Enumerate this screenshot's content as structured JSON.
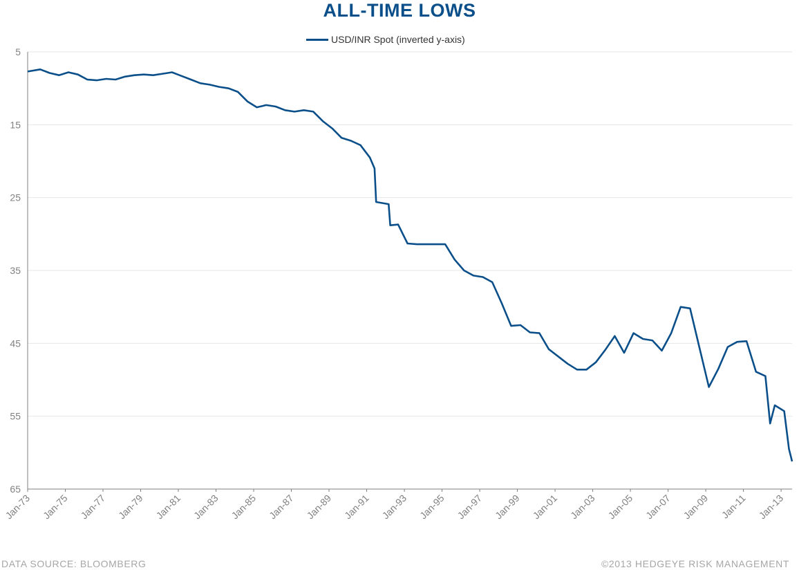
{
  "chart_data": {
    "type": "line",
    "title": "ALL-TIME LOWS",
    "xlabel": "",
    "ylabel": "",
    "y_inverted": true,
    "ylim": [
      5,
      65
    ],
    "yticks": [
      5,
      15,
      25,
      35,
      45,
      55,
      65
    ],
    "xticks": [
      "Jan-73",
      "Jan-75",
      "Jan-77",
      "Jan-79",
      "Jan-81",
      "Jan-83",
      "Jan-85",
      "Jan-87",
      "Jan-89",
      "Jan-91",
      "Jan-93",
      "Jan-95",
      "Jan-97",
      "Jan-99",
      "Jan-01",
      "Jan-03",
      "Jan-05",
      "Jan-07",
      "Jan-09",
      "Jan-11",
      "Jan-13"
    ],
    "grid": "horizontal",
    "legend_position": "top-center",
    "series": [
      {
        "name": "USD/INR Spot (inverted y-axis)",
        "color": "#0b4f8a",
        "points": [
          [
            "1973-01",
            7.7
          ],
          [
            "1973-09",
            7.4
          ],
          [
            "1974-03",
            7.9
          ],
          [
            "1974-09",
            8.2
          ],
          [
            "1975-03",
            7.8
          ],
          [
            "1975-09",
            8.1
          ],
          [
            "1976-03",
            8.8
          ],
          [
            "1976-09",
            8.9
          ],
          [
            "1977-03",
            8.7
          ],
          [
            "1977-09",
            8.8
          ],
          [
            "1978-03",
            8.4
          ],
          [
            "1978-09",
            8.2
          ],
          [
            "1979-03",
            8.1
          ],
          [
            "1979-09",
            8.2
          ],
          [
            "1980-03",
            8.0
          ],
          [
            "1980-09",
            7.8
          ],
          [
            "1981-03",
            8.3
          ],
          [
            "1981-09",
            8.8
          ],
          [
            "1982-03",
            9.3
          ],
          [
            "1982-09",
            9.5
          ],
          [
            "1983-03",
            9.8
          ],
          [
            "1983-09",
            10.0
          ],
          [
            "1984-03",
            10.5
          ],
          [
            "1984-09",
            11.8
          ],
          [
            "1985-03",
            12.6
          ],
          [
            "1985-09",
            12.3
          ],
          [
            "1986-03",
            12.5
          ],
          [
            "1986-09",
            13.0
          ],
          [
            "1987-03",
            13.2
          ],
          [
            "1987-09",
            13.0
          ],
          [
            "1988-03",
            13.2
          ],
          [
            "1988-09",
            14.5
          ],
          [
            "1989-03",
            15.5
          ],
          [
            "1989-09",
            16.8
          ],
          [
            "1990-03",
            17.2
          ],
          [
            "1990-09",
            17.8
          ],
          [
            "1991-03",
            19.5
          ],
          [
            "1991-06",
            21.0
          ],
          [
            "1991-07",
            25.6
          ],
          [
            "1992-03",
            25.9
          ],
          [
            "1992-04",
            28.8
          ],
          [
            "1992-09",
            28.7
          ],
          [
            "1993-03",
            31.3
          ],
          [
            "1993-09",
            31.4
          ],
          [
            "1994-03",
            31.4
          ],
          [
            "1995-03",
            31.4
          ],
          [
            "1995-09",
            33.5
          ],
          [
            "1996-03",
            35.0
          ],
          [
            "1996-09",
            35.7
          ],
          [
            "1997-03",
            35.9
          ],
          [
            "1997-09",
            36.6
          ],
          [
            "1998-03",
            39.5
          ],
          [
            "1998-09",
            42.6
          ],
          [
            "1999-03",
            42.5
          ],
          [
            "1999-09",
            43.5
          ],
          [
            "2000-03",
            43.6
          ],
          [
            "2000-09",
            45.8
          ],
          [
            "2001-03",
            46.8
          ],
          [
            "2001-09",
            47.8
          ],
          [
            "2002-03",
            48.6
          ],
          [
            "2002-09",
            48.6
          ],
          [
            "2003-03",
            47.6
          ],
          [
            "2003-09",
            45.9
          ],
          [
            "2004-03",
            44.0
          ],
          [
            "2004-09",
            46.3
          ],
          [
            "2005-03",
            43.6
          ],
          [
            "2005-09",
            44.4
          ],
          [
            "2006-03",
            44.6
          ],
          [
            "2006-09",
            46.0
          ],
          [
            "2007-03",
            43.6
          ],
          [
            "2007-09",
            40.0
          ],
          [
            "2008-03",
            40.2
          ],
          [
            "2008-09",
            45.6
          ],
          [
            "2009-03",
            51.0
          ],
          [
            "2009-09",
            48.5
          ],
          [
            "2010-03",
            45.5
          ],
          [
            "2010-09",
            44.8
          ],
          [
            "2011-03",
            44.7
          ],
          [
            "2011-09",
            48.9
          ],
          [
            "2012-03",
            49.5
          ],
          [
            "2012-06",
            56.0
          ],
          [
            "2012-09",
            53.5
          ],
          [
            "2013-03",
            54.3
          ],
          [
            "2013-06",
            59.5
          ],
          [
            "2013-08",
            61.2
          ]
        ]
      }
    ]
  },
  "footer": {
    "source": "DATA SOURCE:  BLOOMBERG",
    "copyright": "©2013 HEDGEYE  RISK MANAGEMENT"
  }
}
